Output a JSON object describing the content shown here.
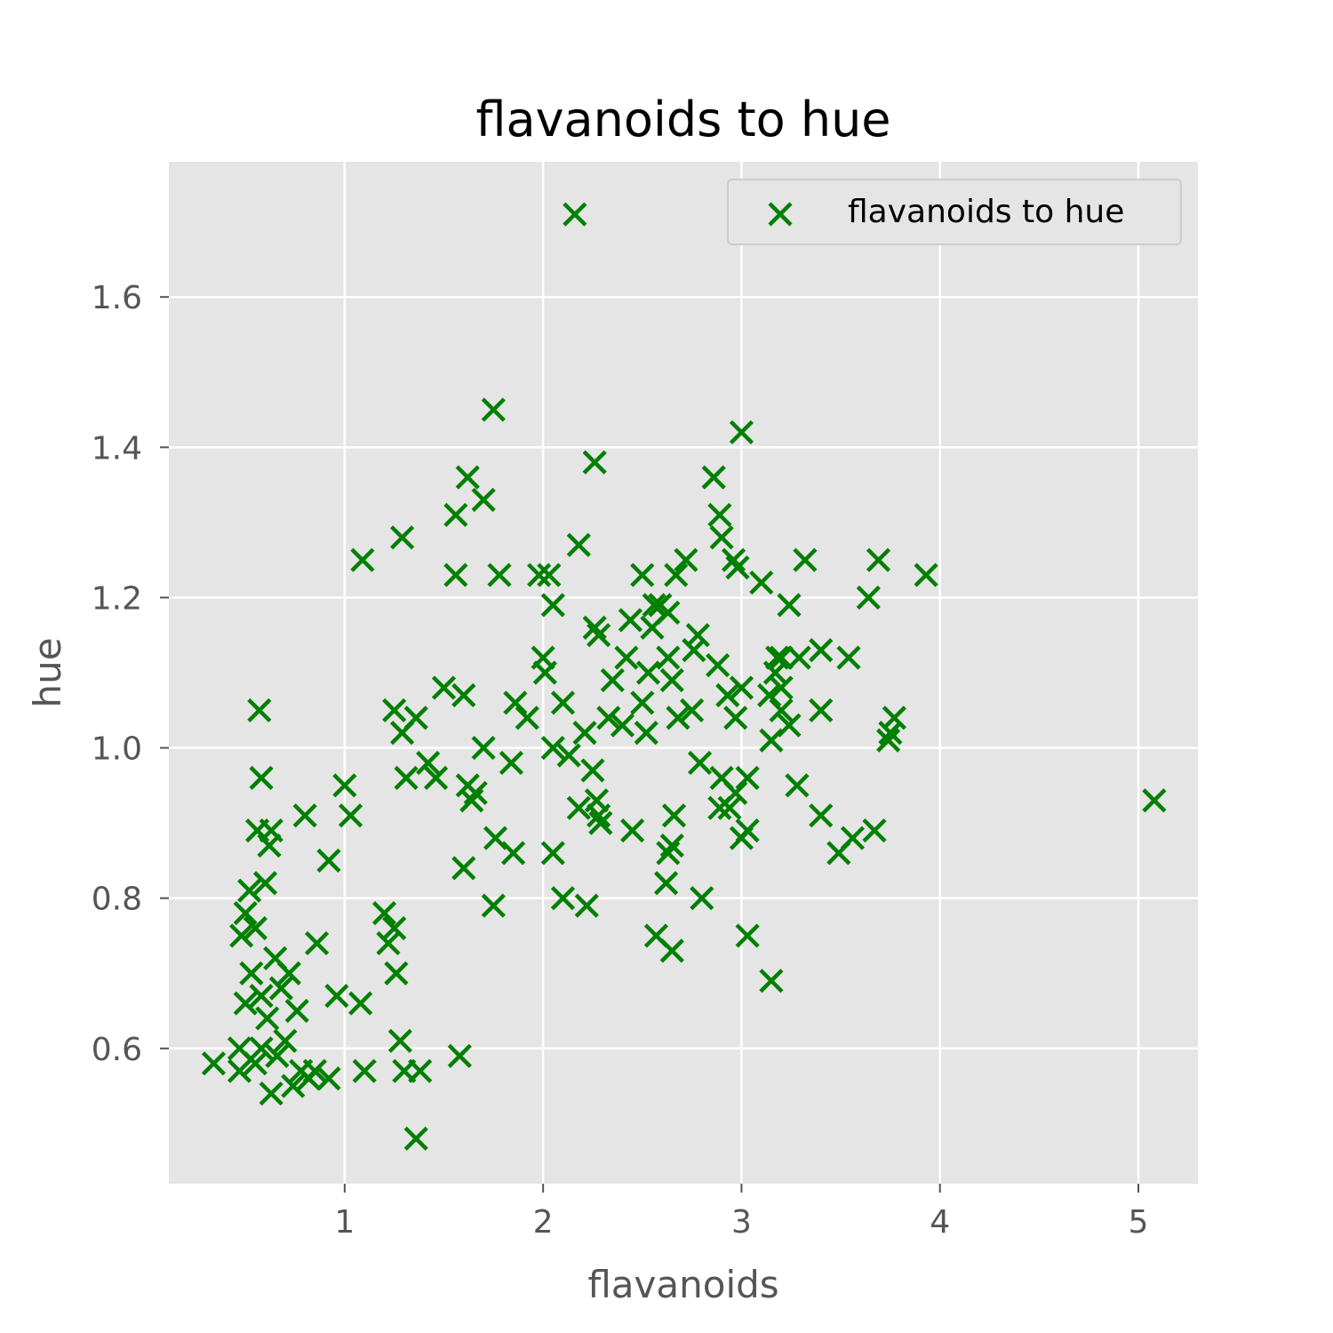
{
  "chart_data": {
    "type": "scatter",
    "title": "flavanoids to hue",
    "xlabel": "flavanoids",
    "ylabel": "hue",
    "xlim": [
      0.114,
      5.3
    ],
    "ylim": [
      0.42,
      1.78
    ],
    "xticks": [
      1,
      2,
      3,
      4,
      5
    ],
    "xtick_labels": [
      "1",
      "2",
      "3",
      "4",
      "5"
    ],
    "yticks": [
      0.6,
      0.8,
      1.0,
      1.2,
      1.4,
      1.6
    ],
    "ytick_labels": [
      "0.6",
      "0.8",
      "1.0",
      "1.2",
      "1.4",
      "1.6"
    ],
    "grid": true,
    "legend_position": "top-right",
    "colors": {
      "marker": "#008000",
      "plot_bg": "#e5e5e5",
      "grid": "#ffffff",
      "tick": "#555555"
    },
    "series": [
      {
        "name": "flavanoids to hue",
        "marker": "x",
        "points": [
          [
            0.34,
            0.58
          ],
          [
            0.47,
            0.57
          ],
          [
            0.47,
            0.6
          ],
          [
            0.55,
            0.58
          ],
          [
            0.58,
            0.6
          ],
          [
            0.63,
            0.54
          ],
          [
            0.66,
            0.59
          ],
          [
            0.7,
            0.61
          ],
          [
            0.74,
            0.55
          ],
          [
            0.78,
            0.57
          ],
          [
            0.82,
            0.56
          ],
          [
            0.85,
            0.57
          ],
          [
            0.92,
            0.56
          ],
          [
            1.1,
            0.57
          ],
          [
            1.28,
            0.61
          ],
          [
            1.3,
            0.57
          ],
          [
            1.38,
            0.57
          ],
          [
            1.36,
            0.48
          ],
          [
            1.58,
            0.59
          ],
          [
            0.5,
            0.66
          ],
          [
            0.53,
            0.7
          ],
          [
            0.58,
            0.67
          ],
          [
            0.61,
            0.64
          ],
          [
            0.65,
            0.72
          ],
          [
            0.68,
            0.68
          ],
          [
            0.72,
            0.7
          ],
          [
            0.76,
            0.65
          ],
          [
            0.86,
            0.74
          ],
          [
            0.96,
            0.67
          ],
          [
            1.08,
            0.66
          ],
          [
            0.48,
            0.75
          ],
          [
            0.5,
            0.78
          ],
          [
            0.52,
            0.81
          ],
          [
            0.55,
            0.76
          ],
          [
            0.6,
            0.82
          ],
          [
            0.62,
            0.87
          ],
          [
            0.63,
            0.89
          ],
          [
            0.56,
            0.89
          ],
          [
            0.58,
            0.96
          ],
          [
            0.57,
            1.05
          ],
          [
            0.8,
            0.91
          ],
          [
            0.92,
            0.85
          ],
          [
            1.0,
            0.95
          ],
          [
            1.03,
            0.91
          ],
          [
            1.2,
            0.78
          ],
          [
            1.22,
            0.74
          ],
          [
            1.25,
            0.76
          ],
          [
            1.26,
            0.7
          ],
          [
            1.09,
            1.25
          ],
          [
            1.29,
            1.28
          ],
          [
            1.25,
            1.05
          ],
          [
            1.29,
            1.02
          ],
          [
            1.31,
            0.96
          ],
          [
            1.36,
            1.04
          ],
          [
            1.42,
            0.98
          ],
          [
            1.46,
            0.96
          ],
          [
            1.5,
            1.08
          ],
          [
            1.6,
            1.07
          ],
          [
            1.62,
            0.95
          ],
          [
            1.64,
            0.93
          ],
          [
            1.66,
            0.94
          ],
          [
            1.7,
            1.0
          ],
          [
            1.6,
            0.84
          ],
          [
            1.75,
            0.79
          ],
          [
            1.76,
            0.88
          ],
          [
            1.84,
            0.98
          ],
          [
            1.85,
            0.86
          ],
          [
            1.86,
            1.06
          ],
          [
            1.92,
            1.04
          ],
          [
            1.56,
            1.31
          ],
          [
            1.62,
            1.36
          ],
          [
            1.7,
            1.33
          ],
          [
            1.56,
            1.23
          ],
          [
            1.75,
            1.45
          ],
          [
            1.78,
            1.23
          ],
          [
            1.98,
            1.23
          ],
          [
            2.03,
            1.23
          ],
          [
            2.05,
            1.19
          ],
          [
            2.0,
            1.12
          ],
          [
            2.01,
            1.1
          ],
          [
            2.05,
            1.0
          ],
          [
            2.1,
            1.06
          ],
          [
            2.13,
            0.99
          ],
          [
            2.18,
            0.92
          ],
          [
            2.05,
            0.86
          ],
          [
            2.1,
            0.8
          ],
          [
            2.22,
            0.79
          ],
          [
            2.18,
            1.27
          ],
          [
            2.16,
            1.71
          ],
          [
            2.26,
            1.38
          ],
          [
            2.26,
            1.16
          ],
          [
            2.28,
            1.15
          ],
          [
            2.21,
            1.02
          ],
          [
            2.25,
            0.97
          ],
          [
            2.27,
            0.93
          ],
          [
            2.28,
            0.91
          ],
          [
            2.29,
            0.9
          ],
          [
            2.33,
            1.04
          ],
          [
            2.35,
            1.09
          ],
          [
            2.4,
            1.03
          ],
          [
            2.42,
            1.12
          ],
          [
            2.44,
            1.17
          ],
          [
            2.45,
            0.89
          ],
          [
            2.5,
            1.23
          ],
          [
            2.5,
            1.06
          ],
          [
            2.52,
            1.02
          ],
          [
            2.53,
            1.1
          ],
          [
            2.55,
            1.16
          ],
          [
            2.56,
            1.19
          ],
          [
            2.59,
            1.19
          ],
          [
            2.63,
            1.18
          ],
          [
            2.63,
            1.12
          ],
          [
            2.65,
            1.09
          ],
          [
            2.67,
            1.23
          ],
          [
            2.68,
            1.04
          ],
          [
            2.72,
            1.25
          ],
          [
            2.75,
            1.05
          ],
          [
            2.76,
            1.13
          ],
          [
            2.78,
            1.15
          ],
          [
            2.79,
            0.98
          ],
          [
            2.63,
            0.86
          ],
          [
            2.65,
            0.87
          ],
          [
            2.66,
            0.91
          ],
          [
            2.62,
            0.82
          ],
          [
            2.57,
            0.75
          ],
          [
            2.65,
            0.73
          ],
          [
            2.8,
            0.8
          ],
          [
            2.86,
            1.36
          ],
          [
            2.89,
            1.31
          ],
          [
            2.9,
            1.28
          ],
          [
            2.96,
            1.25
          ],
          [
            2.98,
            1.24
          ],
          [
            3.0,
            1.42
          ],
          [
            3.1,
            1.22
          ],
          [
            2.88,
            1.11
          ],
          [
            2.93,
            1.07
          ],
          [
            2.97,
            1.04
          ],
          [
            3.0,
            1.08
          ],
          [
            2.9,
            0.96
          ],
          [
            2.94,
            0.92
          ],
          [
            2.89,
            0.92
          ],
          [
            2.97,
            0.94
          ],
          [
            3.03,
            0.96
          ],
          [
            3.0,
            0.88
          ],
          [
            3.03,
            0.89
          ],
          [
            3.03,
            0.75
          ],
          [
            3.14,
            1.07
          ],
          [
            3.17,
            1.1
          ],
          [
            3.18,
            1.12
          ],
          [
            3.2,
            1.08
          ],
          [
            3.15,
            1.01
          ],
          [
            3.2,
            1.05
          ],
          [
            3.24,
            1.03
          ],
          [
            3.2,
            1.12
          ],
          [
            3.29,
            1.12
          ],
          [
            3.24,
            1.19
          ],
          [
            3.32,
            1.25
          ],
          [
            3.28,
            0.95
          ],
          [
            3.4,
            1.05
          ],
          [
            3.4,
            0.91
          ],
          [
            3.4,
            1.13
          ],
          [
            3.54,
            1.12
          ],
          [
            3.49,
            0.86
          ],
          [
            3.56,
            0.88
          ],
          [
            3.64,
            1.2
          ],
          [
            3.69,
            1.25
          ],
          [
            3.67,
            0.89
          ],
          [
            3.74,
            1.01
          ],
          [
            3.75,
            1.02
          ],
          [
            3.77,
            1.04
          ],
          [
            3.15,
            0.69
          ],
          [
            3.93,
            1.23
          ],
          [
            5.08,
            0.93
          ]
        ]
      }
    ]
  }
}
